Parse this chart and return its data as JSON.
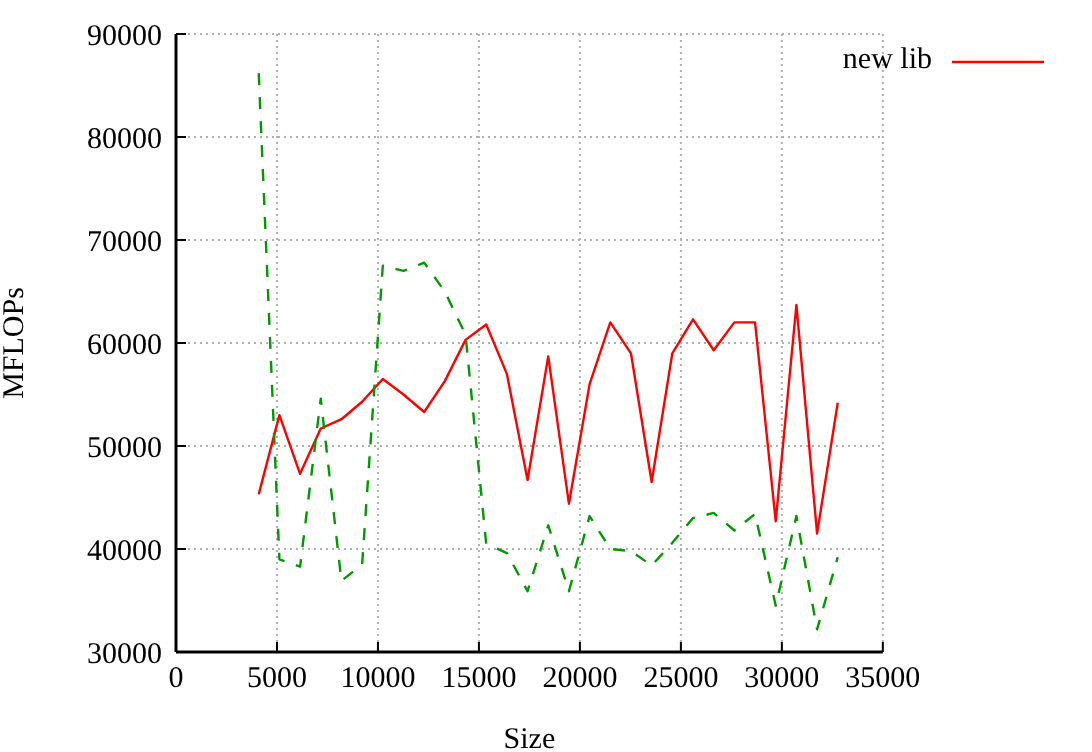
{
  "chart_data": {
    "type": "line",
    "xlabel": "Size",
    "ylabel": "MFLOPs",
    "x": [
      4096,
      5120,
      6144,
      7168,
      8192,
      9216,
      10240,
      11264,
      12288,
      13312,
      14336,
      15360,
      16384,
      17408,
      18432,
      19456,
      20480,
      21504,
      22528,
      23552,
      24576,
      25600,
      26624,
      27648,
      28672,
      29696,
      30720,
      31744,
      32768
    ],
    "series": [
      {
        "name": "new lib",
        "color": "#ff0000",
        "line_style": "solid",
        "values": [
          45300,
          53000,
          47300,
          51700,
          52600,
          54300,
          56500,
          55000,
          53300,
          56300,
          60300,
          61800,
          57000,
          46700,
          58700,
          44400,
          56000,
          62000,
          59000,
          46500,
          59000,
          62300,
          59300,
          62000,
          62000,
          42700,
          63700,
          41500,
          54200
        ]
      },
      {
        "color": "#009900",
        "line_style": "dashed",
        "values": [
          86200,
          39000,
          38300,
          54600,
          36900,
          38500,
          67500,
          67000,
          67800,
          65000,
          60800,
          40500,
          39600,
          35900,
          42300,
          35900,
          43200,
          40000,
          39800,
          38400,
          40600,
          43000,
          43500,
          41800,
          43400,
          34500,
          43200,
          32200,
          39200
        ]
      }
    ],
    "xlim": [
      0,
      35000
    ],
    "xticks": [
      0,
      5000,
      10000,
      15000,
      20000,
      25000,
      30000,
      35000
    ],
    "ylim": [
      30000,
      90000
    ],
    "yticks": [
      30000,
      40000,
      50000,
      60000,
      70000,
      80000,
      90000
    ],
    "grid": true,
    "legend": "top right",
    "marker": "none"
  }
}
